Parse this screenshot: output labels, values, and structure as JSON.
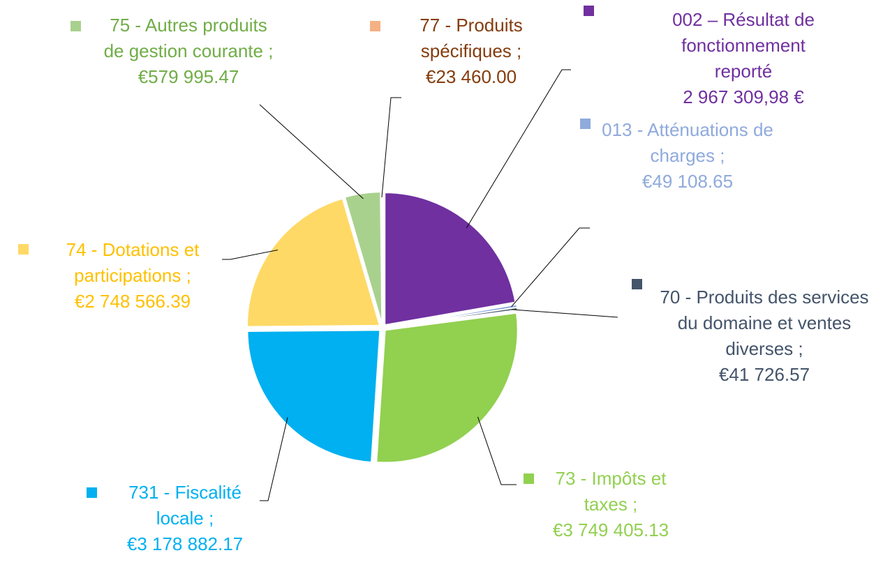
{
  "chart_data": {
    "type": "pie",
    "categories": [
      "002 – Résultat de fonctionnement reporté",
      "013 - Atténuations de charges ;",
      "70 - Produits des services du domaine et ventes diverses ;",
      "73 - Impôts et taxes ;",
      "731 - Fiscalité locale ;",
      "74 - Dotations et participations ;",
      "75 - Autres produits de gestion courante ;",
      "77 - Produits spécifiques ;"
    ],
    "values": [
      2967309.98,
      49108.65,
      41726.57,
      3749405.13,
      3178882.17,
      2748566.39,
      579995.47,
      23460.0
    ],
    "value_labels": [
      "2 967 309,98 €",
      "€49 108.65",
      "€41 726.57",
      "€3 749 405.13",
      "€3 178 882.17",
      "€2 748 566.39",
      "€579 995.47",
      "€23 460.00"
    ],
    "colors": [
      "#7030a0",
      "#8faadc",
      "#44546a",
      "#92d050",
      "#00b0f0",
      "#ffd966",
      "#a9d18e",
      "#f4b183"
    ],
    "label_colors": [
      "#7030a0",
      "#8faadc",
      "#44546a",
      "#92d050",
      "#00b0f0",
      "#ffc000",
      "#70ad47",
      "#843c0c"
    ]
  }
}
